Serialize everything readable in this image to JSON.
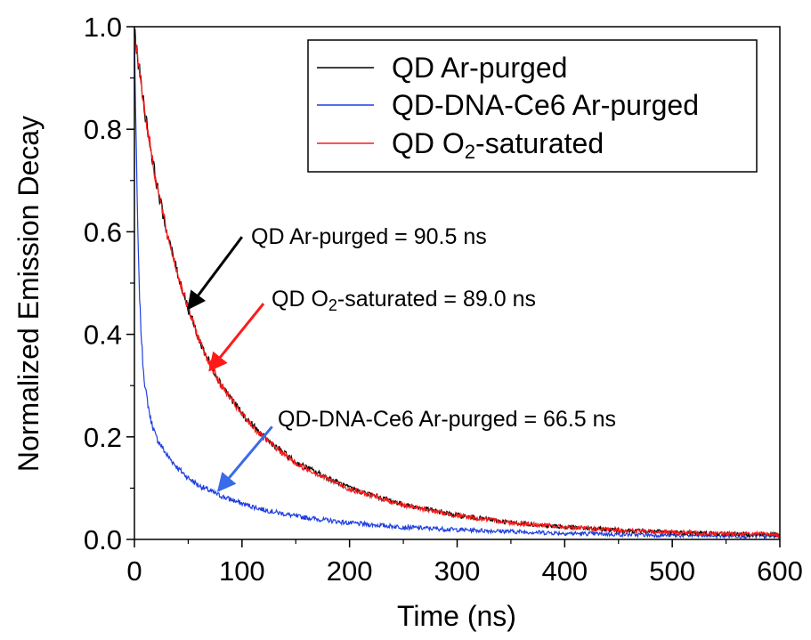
{
  "chart_data": {
    "type": "line",
    "xlabel": "Time (ns)",
    "ylabel": "Normalized Emission Decay",
    "xlim": [
      0,
      600
    ],
    "ylim": [
      0,
      1.0
    ],
    "x_ticks": [
      "0",
      "100",
      "200",
      "300",
      "400",
      "500",
      "600"
    ],
    "y_ticks": [
      "0.0",
      "0.2",
      "0.4",
      "0.6",
      "0.8",
      "1.0"
    ],
    "grid": false,
    "legend_position": "top-right",
    "legend": [
      {
        "text": "QD Ar-purged",
        "color": "#000000"
      },
      {
        "text": "QD-DNA-Ce6 Ar-purged",
        "color": "#1f3fe0"
      },
      {
        "base": "QD O",
        "sub": "2",
        "rest": "-saturated",
        "color": "#ff1a1a"
      }
    ],
    "series": [
      {
        "name": "QD Ar-purged",
        "color": "#000000",
        "x": [
          0,
          10,
          20,
          30,
          40,
          50,
          60,
          70,
          80,
          100,
          120,
          150,
          200,
          250,
          300,
          350,
          400,
          450,
          500,
          550,
          600
        ],
        "y": [
          0.99,
          0.83,
          0.7,
          0.6,
          0.52,
          0.45,
          0.39,
          0.345,
          0.305,
          0.245,
          0.2,
          0.15,
          0.1,
          0.068,
          0.047,
          0.033,
          0.024,
          0.018,
          0.014,
          0.011,
          0.009
        ]
      },
      {
        "name": "QD-DNA-Ce6 Ar-purged",
        "color": "#1f3fe0",
        "x": [
          0,
          2,
          4,
          6,
          8,
          10,
          15,
          20,
          30,
          40,
          50,
          60,
          70,
          80,
          100,
          120,
          150,
          200,
          250,
          300,
          400,
          500,
          600
        ],
        "y": [
          0.99,
          0.72,
          0.52,
          0.41,
          0.34,
          0.295,
          0.235,
          0.2,
          0.165,
          0.14,
          0.12,
          0.105,
          0.095,
          0.085,
          0.07,
          0.058,
          0.045,
          0.032,
          0.024,
          0.019,
          0.012,
          0.008,
          0.006
        ]
      },
      {
        "name": "QD O2-saturated",
        "color": "#ff1a1a",
        "x": [
          0,
          10,
          20,
          30,
          40,
          50,
          60,
          70,
          80,
          100,
          120,
          150,
          200,
          250,
          300,
          350,
          400,
          450,
          500,
          550,
          600
        ],
        "y": [
          0.99,
          0.83,
          0.7,
          0.6,
          0.52,
          0.45,
          0.39,
          0.343,
          0.303,
          0.243,
          0.198,
          0.148,
          0.098,
          0.067,
          0.046,
          0.033,
          0.024,
          0.018,
          0.014,
          0.011,
          0.01
        ]
      }
    ],
    "annotations": [
      {
        "base": "QD Ar-purged = 90.5 ns",
        "sub": "",
        "rest": "",
        "color": "#000000",
        "target_x": 50,
        "target_y": 0.45,
        "from_x": 100,
        "from_y": 0.59
      },
      {
        "base": "QD O",
        "sub": "2",
        "rest": "-saturated = 89.0 ns",
        "color": "#ff1a1a",
        "target_x": 70,
        "target_y": 0.33,
        "from_x": 120,
        "from_y": 0.46
      },
      {
        "base": "QD-DNA-Ce6 Ar-purged = 66.5 ns",
        "sub": "",
        "rest": "",
        "color": "#3a6be8",
        "target_x": 78,
        "target_y": 0.095,
        "from_x": 128,
        "from_y": 0.22
      }
    ]
  }
}
